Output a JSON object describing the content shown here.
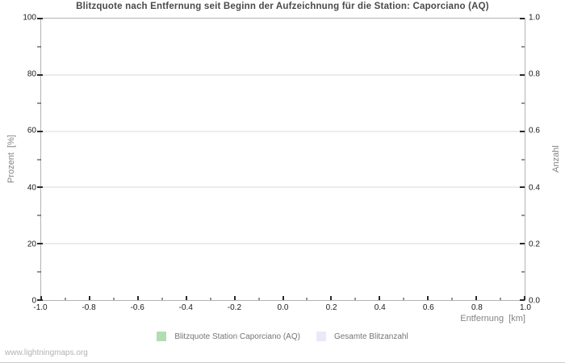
{
  "chart_data": {
    "type": "bar",
    "title": "Blitzquote nach Entfernung seit Beginn der Aufzeichnung für die Station: Caporciano (AQ)",
    "xlabel": "Entfernung  [km]",
    "ylabel_left": "Prozent  [%]",
    "ylabel_right": "Anzahl",
    "xlim": [
      -1.0,
      1.0
    ],
    "ylim_left": [
      0,
      100
    ],
    "ylim_right": [
      0.0,
      1.0
    ],
    "x_ticks": [
      "-1.0",
      "-0.8",
      "-0.6",
      "-0.4",
      "-0.2",
      "0.0",
      "0.2",
      "0.4",
      "0.6",
      "0.8",
      "1.0"
    ],
    "y_ticks_left": [
      "0",
      "20",
      "40",
      "60",
      "80",
      "100"
    ],
    "y_ticks_right": [
      "0.0",
      "0.2",
      "0.4",
      "0.6",
      "0.8",
      "1.0"
    ],
    "grid": "horizontal-major-only",
    "legend_position": "bottom-center",
    "legend": [
      {
        "label": "Blitzquote Station Caporciano (AQ)",
        "color": "#b2ddb2"
      },
      {
        "label": "Gesamte Blitzanzahl",
        "color": "#e9e9f9"
      }
    ],
    "series": [
      {
        "name": "Blitzquote Station Caporciano (AQ)",
        "x": [],
        "values": []
      },
      {
        "name": "Gesamte Blitzanzahl",
        "x": [],
        "values": []
      }
    ]
  },
  "colors": {
    "plot_border": "#b3b3b3",
    "gridline": "#dadada",
    "tick_mark": "#2a2a2a",
    "tick_label": "#1a1a1a",
    "axis_label": "#848484",
    "title": "#4a4a4a",
    "legend_text": "#757575",
    "watermark_text": "#b2b2b2"
  },
  "watermark": "www.lightningmaps.org"
}
